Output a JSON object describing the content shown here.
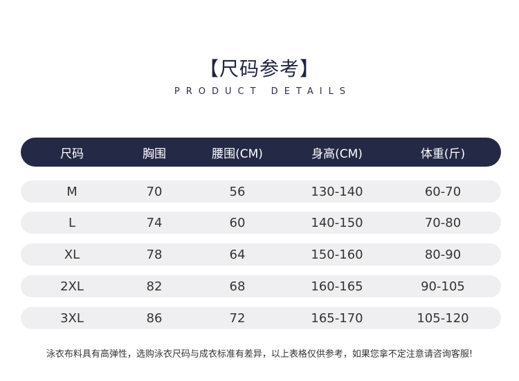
{
  "title": "【尺码参考】",
  "subtitle": "PRODUCT DETAILS",
  "table": {
    "headers": [
      "尺码",
      "胸围",
      "腰围(CM)",
      "身高(CM)",
      "体重(斤)"
    ],
    "rows": [
      [
        "M",
        "70",
        "56",
        "130-140",
        "60-70"
      ],
      [
        "L",
        "74",
        "60",
        "140-150",
        "70-80"
      ],
      [
        "XL",
        "78",
        "64",
        "150-160",
        "80-90"
      ],
      [
        "2XL",
        "82",
        "68",
        "160-165",
        "90-105"
      ],
      [
        "3XL",
        "86",
        "72",
        "165-170",
        "105-120"
      ]
    ]
  },
  "footer": "泳衣布料具有高弹性，选购泳衣尺码与成衣标准有差异，以上表格仅供参考，如果您拿不定注意请咨询客服!",
  "colors": {
    "header_bg": "#242946",
    "row_bg": "#efeef0"
  }
}
